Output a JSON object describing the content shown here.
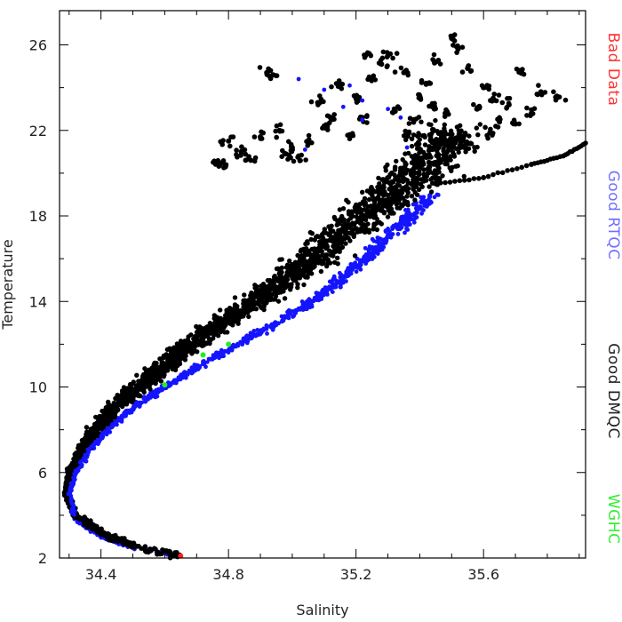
{
  "chart_data": {
    "type": "scatter",
    "title": "",
    "xlabel": "Salinity",
    "ylabel": "Temperature",
    "xlim": [
      34.27,
      35.92
    ],
    "ylim": [
      2,
      27.6
    ],
    "xticks": [
      34.4,
      34.8,
      35.2,
      35.6
    ],
    "yticks": [
      2,
      6,
      10,
      14,
      18,
      22,
      26
    ],
    "grid": false,
    "legend_placement": "right-vertical",
    "colors": {
      "good_dmqc": "#000000",
      "good_rtqc": "#1414ff",
      "wghc": "#22ee22",
      "bad_data": "#ff2020"
    },
    "legend": [
      {
        "key": "bad_data",
        "label": "Bad Data",
        "color": "#ff3333"
      },
      {
        "key": "good_rtqc",
        "label": "Good RTQC",
        "color": "#7070ff"
      },
      {
        "key": "good_dmqc",
        "label": "Good DMQC",
        "color": "#222222"
      },
      {
        "key": "wghc",
        "label": "WGHC",
        "color": "#33ee33"
      }
    ],
    "series": [
      {
        "name": "Good DMQC",
        "key": "good_dmqc",
        "color": "#000000",
        "curve": [
          [
            34.65,
            2.1
          ],
          [
            34.5,
            2.6
          ],
          [
            34.4,
            3.2
          ],
          [
            34.32,
            4.0
          ],
          [
            34.29,
            5.0
          ],
          [
            34.3,
            6.0
          ],
          [
            34.34,
            7.0
          ],
          [
            34.38,
            8.0
          ],
          [
            34.44,
            9.0
          ],
          [
            34.52,
            10.0
          ],
          [
            34.6,
            11.0
          ],
          [
            34.68,
            12.0
          ],
          [
            34.78,
            13.0
          ],
          [
            34.88,
            14.0
          ],
          [
            34.98,
            15.0
          ],
          [
            35.06,
            16.0
          ],
          [
            35.14,
            17.0
          ],
          [
            35.22,
            18.0
          ],
          [
            35.3,
            19.0
          ],
          [
            35.4,
            20.0
          ],
          [
            35.45,
            21.0
          ],
          [
            35.5,
            22.0
          ]
        ],
        "scatter_points": [
          [
            34.98,
            20.9
          ],
          [
            35.02,
            20.8
          ],
          [
            35.0,
            21.2
          ],
          [
            34.96,
            22.0
          ],
          [
            35.05,
            21.5
          ],
          [
            35.1,
            22.2
          ],
          [
            35.18,
            21.8
          ],
          [
            35.2,
            23.5
          ],
          [
            35.25,
            24.4
          ],
          [
            35.3,
            25.5
          ],
          [
            35.28,
            25.1
          ],
          [
            35.35,
            24.7
          ],
          [
            35.4,
            23.6
          ],
          [
            35.45,
            25.2
          ],
          [
            35.5,
            26.3
          ],
          [
            35.52,
            25.8
          ],
          [
            35.55,
            24.9
          ],
          [
            35.6,
            24.0
          ],
          [
            35.63,
            23.5
          ],
          [
            35.68,
            23.2
          ],
          [
            35.72,
            24.8
          ],
          [
            35.78,
            23.8
          ],
          [
            35.83,
            23.6
          ],
          [
            35.75,
            22.8
          ],
          [
            35.65,
            22.4
          ],
          [
            35.58,
            23.0
          ],
          [
            35.48,
            22.8
          ],
          [
            35.42,
            24.2
          ],
          [
            35.38,
            22.5
          ],
          [
            35.32,
            23.0
          ],
          [
            35.22,
            22.6
          ],
          [
            35.12,
            22.6
          ],
          [
            35.08,
            23.3
          ],
          [
            35.15,
            24.1
          ],
          [
            35.24,
            25.6
          ],
          [
            34.92,
            24.7
          ],
          [
            34.94,
            24.6
          ],
          [
            34.8,
            21.5
          ],
          [
            34.77,
            20.5
          ],
          [
            34.79,
            20.3
          ],
          [
            34.84,
            21.0
          ],
          [
            34.87,
            20.6
          ],
          [
            34.9,
            21.7
          ],
          [
            35.55,
            21.4
          ],
          [
            35.62,
            21.9
          ],
          [
            35.7,
            22.3
          ],
          [
            35.47,
            21.6
          ],
          [
            35.36,
            21.9
          ],
          [
            35.44,
            23.1
          ]
        ],
        "tail": [
          [
            35.45,
            19.5
          ],
          [
            35.6,
            19.8
          ],
          [
            35.75,
            20.4
          ],
          [
            35.85,
            20.8
          ],
          [
            35.92,
            21.4
          ]
        ]
      },
      {
        "name": "Good RTQC",
        "key": "good_rtqc",
        "color": "#1414ff",
        "curve": [
          [
            34.64,
            2.1
          ],
          [
            34.5,
            2.5
          ],
          [
            34.4,
            3.0
          ],
          [
            34.32,
            3.8
          ],
          [
            34.3,
            5.0
          ],
          [
            34.32,
            6.0
          ],
          [
            34.36,
            7.0
          ],
          [
            34.42,
            8.0
          ],
          [
            34.5,
            9.0
          ],
          [
            34.6,
            10.0
          ],
          [
            34.71,
            11.0
          ],
          [
            34.83,
            12.0
          ],
          [
            34.95,
            13.0
          ],
          [
            35.06,
            14.0
          ],
          [
            35.15,
            15.0
          ],
          [
            35.23,
            16.0
          ],
          [
            35.3,
            17.0
          ],
          [
            35.37,
            18.0
          ],
          [
            35.44,
            19.0
          ]
        ],
        "scatter_points": [
          [
            35.02,
            24.4
          ],
          [
            35.16,
            23.1
          ],
          [
            35.22,
            23.4
          ],
          [
            35.3,
            23.0
          ],
          [
            35.34,
            22.6
          ],
          [
            35.1,
            23.9
          ],
          [
            35.18,
            24.1
          ],
          [
            35.36,
            21.2
          ],
          [
            35.22,
            22.5
          ],
          [
            35.04,
            21.1
          ]
        ]
      },
      {
        "name": "WGHC",
        "key": "wghc",
        "color": "#22ee22",
        "points": [
          [
            34.6,
            10.1
          ],
          [
            34.72,
            11.5
          ],
          [
            34.8,
            12.0
          ]
        ]
      },
      {
        "name": "Bad Data",
        "key": "bad_data",
        "color": "#ff2020",
        "points": [
          [
            34.65,
            2.1
          ]
        ]
      }
    ]
  }
}
